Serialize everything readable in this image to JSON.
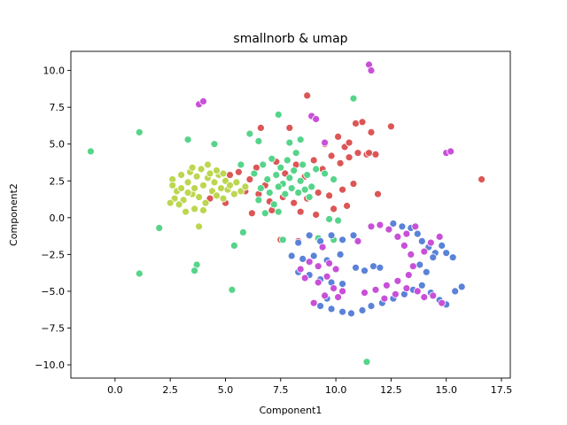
{
  "chart_data": {
    "type": "scatter",
    "title": "smallnorb & umap",
    "xlabel": "Component1",
    "ylabel": "Component2",
    "xlim": [
      -2.0,
      17.9
    ],
    "ylim": [
      -10.9,
      11.3
    ],
    "xticks": [
      0.0,
      2.5,
      5.0,
      7.5,
      10.0,
      12.5,
      15.0,
      17.5
    ],
    "xtick_labels": [
      "0.0",
      "2.5",
      "5.0",
      "7.5",
      "10.0",
      "12.5",
      "15.0",
      "17.5"
    ],
    "yticks": [
      -10.0,
      -7.5,
      -5.0,
      -2.5,
      0.0,
      2.5,
      5.0,
      7.5,
      10.0
    ],
    "ytick_labels": [
      "−10.0",
      "−7.5",
      "−5.0",
      "−2.5",
      "0.0",
      "2.5",
      "5.0",
      "7.5",
      "10.0"
    ],
    "grid": false,
    "legend": "none",
    "series": [
      {
        "color": "#dc5656",
        "points": [
          [
            5.2,
            2.9
          ],
          [
            5.6,
            3.1
          ],
          [
            6.1,
            2.6
          ],
          [
            6.4,
            3.4
          ],
          [
            6.8,
            2.2
          ],
          [
            7.3,
            3.8
          ],
          [
            7.7,
            3.0
          ],
          [
            8.2,
            3.6
          ],
          [
            8.6,
            2.8
          ],
          [
            9.0,
            3.9
          ],
          [
            9.4,
            3.3
          ],
          [
            9.8,
            4.2
          ],
          [
            10.2,
            3.7
          ],
          [
            10.6,
            4.1
          ],
          [
            11.0,
            4.4
          ],
          [
            11.4,
            4.3
          ],
          [
            5.9,
            1.8
          ],
          [
            6.5,
            1.6
          ],
          [
            7.0,
            1.1
          ],
          [
            7.6,
            1.4
          ],
          [
            8.1,
            1.0
          ],
          [
            8.7,
            1.3
          ],
          [
            9.2,
            1.7
          ],
          [
            9.7,
            1.5
          ],
          [
            10.3,
            1.9
          ],
          [
            10.8,
            2.3
          ],
          [
            6.2,
            0.3
          ],
          [
            7.1,
            0.5
          ],
          [
            8.4,
            0.4
          ],
          [
            9.1,
            0.2
          ],
          [
            9.9,
            0.6
          ],
          [
            10.5,
            0.8
          ],
          [
            9.5,
            5.0
          ],
          [
            10.1,
            5.5
          ],
          [
            10.4,
            4.8
          ],
          [
            10.9,
            6.4
          ],
          [
            11.2,
            6.5
          ],
          [
            11.6,
            5.8
          ],
          [
            11.5,
            4.4
          ],
          [
            11.8,
            4.3
          ],
          [
            8.7,
            8.3
          ],
          [
            10.6,
            5.1
          ],
          [
            12.5,
            6.2
          ],
          [
            11.9,
            1.6
          ],
          [
            16.6,
            2.6
          ],
          [
            7.5,
            -1.5
          ],
          [
            8.3,
            -1.6
          ],
          [
            4.3,
            1.3
          ],
          [
            5.0,
            1.0
          ],
          [
            6.6,
            6.1
          ],
          [
            7.9,
            6.1
          ]
        ]
      },
      {
        "color": "#bcd650",
        "points": [
          [
            2.6,
            2.6
          ],
          [
            2.8,
            1.8
          ],
          [
            3.0,
            2.9
          ],
          [
            3.1,
            1.2
          ],
          [
            3.3,
            2.4
          ],
          [
            3.4,
            3.1
          ],
          [
            3.5,
            1.6
          ],
          [
            3.6,
            2.0
          ],
          [
            3.7,
            2.8
          ],
          [
            3.8,
            1.4
          ],
          [
            3.9,
            3.3
          ],
          [
            4.0,
            2.2
          ],
          [
            4.1,
            1.0
          ],
          [
            4.2,
            2.7
          ],
          [
            4.3,
            3.0
          ],
          [
            4.4,
            1.8
          ],
          [
            4.5,
            2.4
          ],
          [
            4.6,
            1.5
          ],
          [
            4.7,
            2.9
          ],
          [
            4.8,
            2.0
          ],
          [
            4.9,
            1.3
          ],
          [
            5.0,
            2.5
          ],
          [
            5.1,
            1.9
          ],
          [
            5.2,
            2.2
          ],
          [
            5.4,
            1.6
          ],
          [
            5.5,
            2.4
          ],
          [
            5.7,
            1.8
          ],
          [
            5.9,
            2.1
          ],
          [
            2.9,
            0.9
          ],
          [
            3.2,
            0.4
          ],
          [
            3.6,
            0.6
          ],
          [
            4.0,
            0.5
          ],
          [
            2.7,
            1.3
          ],
          [
            3.0,
            2.0
          ],
          [
            3.5,
            3.4
          ],
          [
            4.2,
            3.6
          ],
          [
            4.6,
            3.2
          ],
          [
            3.8,
            -0.6
          ],
          [
            2.5,
            1.0
          ],
          [
            2.6,
            2.2
          ],
          [
            3.3,
            1.7
          ],
          [
            4.9,
            3.0
          ]
        ]
      },
      {
        "color": "#56d48a",
        "points": [
          [
            6.3,
            3.0
          ],
          [
            6.7,
            3.6
          ],
          [
            6.9,
            2.6
          ],
          [
            7.1,
            4.0
          ],
          [
            7.3,
            2.9
          ],
          [
            7.5,
            3.4
          ],
          [
            7.6,
            2.3
          ],
          [
            7.8,
            3.9
          ],
          [
            7.9,
            2.7
          ],
          [
            8.1,
            3.2
          ],
          [
            8.2,
            4.4
          ],
          [
            8.4,
            2.5
          ],
          [
            8.5,
            3.6
          ],
          [
            8.7,
            2.9
          ],
          [
            8.9,
            2.1
          ],
          [
            9.1,
            3.3
          ],
          [
            6.6,
            2.0
          ],
          [
            7.0,
            1.7
          ],
          [
            7.4,
            2.1
          ],
          [
            7.7,
            1.6
          ],
          [
            8.0,
            2.0
          ],
          [
            8.3,
            1.7
          ],
          [
            8.6,
            1.9
          ],
          [
            8.8,
            1.4
          ],
          [
            6.5,
            1.2
          ],
          [
            7.2,
            0.9
          ],
          [
            6.8,
            0.3
          ],
          [
            7.4,
            0.4
          ],
          [
            7.9,
            5.1
          ],
          [
            8.4,
            5.3
          ],
          [
            9.5,
            3.0
          ],
          [
            9.9,
            2.6
          ],
          [
            6.1,
            5.7
          ],
          [
            6.5,
            5.2
          ],
          [
            7.4,
            7.0
          ],
          [
            10.8,
            8.1
          ],
          [
            9.7,
            -0.1
          ],
          [
            10.1,
            -0.2
          ],
          [
            9.9,
            -1.5
          ],
          [
            9.2,
            -1.4
          ],
          [
            5.8,
            -1.0
          ],
          [
            5.4,
            -1.9
          ],
          [
            7.6,
            -1.5
          ],
          [
            -1.1,
            4.5
          ],
          [
            1.1,
            5.8
          ],
          [
            3.3,
            5.3
          ],
          [
            3.7,
            -3.2
          ],
          [
            3.6,
            -3.6
          ],
          [
            1.1,
            -3.8
          ],
          [
            2.0,
            -0.7
          ],
          [
            5.3,
            -4.9
          ],
          [
            11.4,
            -9.8
          ],
          [
            4.5,
            5.0
          ],
          [
            5.7,
            3.6
          ]
        ]
      },
      {
        "color": "#5a82d8",
        "points": [
          [
            8.3,
            -1.7
          ],
          [
            8.8,
            -1.2
          ],
          [
            9.3,
            -1.6
          ],
          [
            9.8,
            -1.2
          ],
          [
            10.3,
            -1.5
          ],
          [
            10.8,
            -1.2
          ],
          [
            8.0,
            -2.6
          ],
          [
            8.5,
            -2.8
          ],
          [
            9.0,
            -2.6
          ],
          [
            9.6,
            -2.9
          ],
          [
            10.2,
            -2.5
          ],
          [
            8.3,
            -3.7
          ],
          [
            8.8,
            -3.9
          ],
          [
            9.3,
            -4.2
          ],
          [
            9.8,
            -4.4
          ],
          [
            10.3,
            -4.5
          ],
          [
            10.9,
            -3.4
          ],
          [
            11.3,
            -3.6
          ],
          [
            11.7,
            -3.3
          ],
          [
            12.0,
            -3.4
          ],
          [
            9.3,
            -6.0
          ],
          [
            9.8,
            -6.2
          ],
          [
            10.3,
            -6.4
          ],
          [
            10.7,
            -6.5
          ],
          [
            11.2,
            -6.3
          ],
          [
            11.6,
            -6.0
          ],
          [
            12.1,
            -5.8
          ],
          [
            12.6,
            -5.5
          ],
          [
            13.1,
            -5.2
          ],
          [
            13.5,
            -4.9
          ],
          [
            13.9,
            -4.6
          ],
          [
            14.3,
            -5.1
          ],
          [
            14.7,
            -5.6
          ],
          [
            15.0,
            -5.9
          ],
          [
            15.4,
            -5.0
          ],
          [
            15.7,
            -4.7
          ],
          [
            12.6,
            -0.4
          ],
          [
            13.0,
            -0.6
          ],
          [
            13.4,
            -0.7
          ],
          [
            13.7,
            -1.1
          ],
          [
            13.9,
            -1.6
          ],
          [
            14.2,
            -2.0
          ],
          [
            14.5,
            -2.4
          ],
          [
            14.8,
            -1.9
          ],
          [
            15.0,
            -2.4
          ],
          [
            15.3,
            -2.7
          ],
          [
            13.8,
            -3.2
          ],
          [
            14.1,
            -3.7
          ],
          [
            14.4,
            -2.7
          ],
          [
            9.6,
            -5.5
          ]
        ]
      },
      {
        "color": "#c850d8",
        "points": [
          [
            3.8,
            7.7
          ],
          [
            4.0,
            7.9
          ],
          [
            8.9,
            6.9
          ],
          [
            9.1,
            6.7
          ],
          [
            9.5,
            5.1
          ],
          [
            11.5,
            10.4
          ],
          [
            11.6,
            10.0
          ],
          [
            15.0,
            4.4
          ],
          [
            15.2,
            4.5
          ],
          [
            9.4,
            -2.0
          ],
          [
            9.7,
            -3.1
          ],
          [
            10.0,
            -3.5
          ],
          [
            9.6,
            -4.0
          ],
          [
            9.2,
            -4.4
          ],
          [
            9.9,
            -4.8
          ],
          [
            10.3,
            -5.0
          ],
          [
            9.5,
            -5.3
          ],
          [
            10.1,
            -5.4
          ],
          [
            9.2,
            -3.3
          ],
          [
            8.8,
            -3.0
          ],
          [
            8.4,
            -3.5
          ],
          [
            8.6,
            -4.1
          ],
          [
            11.6,
            -0.6
          ],
          [
            12.0,
            -0.5
          ],
          [
            12.4,
            -0.8
          ],
          [
            12.8,
            -1.3
          ],
          [
            13.1,
            -1.9
          ],
          [
            13.4,
            -2.5
          ],
          [
            13.5,
            -3.3
          ],
          [
            13.3,
            -3.9
          ],
          [
            12.8,
            -4.3
          ],
          [
            12.3,
            -4.6
          ],
          [
            11.8,
            -4.9
          ],
          [
            11.3,
            -5.1
          ],
          [
            12.2,
            -5.5
          ],
          [
            12.7,
            -5.2
          ],
          [
            13.2,
            -4.8
          ],
          [
            13.7,
            -5.0
          ],
          [
            14.0,
            -5.4
          ],
          [
            14.4,
            -5.3
          ],
          [
            14.8,
            -5.8
          ],
          [
            14.0,
            -2.3
          ],
          [
            14.3,
            -1.7
          ],
          [
            14.7,
            -1.3
          ],
          [
            13.6,
            -0.6
          ],
          [
            13.2,
            -1.1
          ],
          [
            11.0,
            -1.6
          ],
          [
            9.0,
            -5.8
          ]
        ]
      }
    ]
  }
}
